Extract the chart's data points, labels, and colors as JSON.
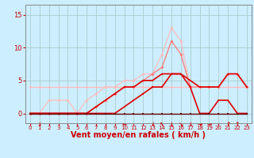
{
  "background_color": "#cceeff",
  "grid_color": "#aacccc",
  "xlabel": "Vent moyen/en rafales ( km/h )",
  "xlabel_color": "#cc0000",
  "xlabel_fontsize": 7,
  "ytick_labels": [
    "0",
    "5",
    "10",
    "15"
  ],
  "ytick_vals": [
    0,
    5,
    10,
    15
  ],
  "xtick_vals": [
    0,
    1,
    2,
    3,
    4,
    5,
    6,
    7,
    8,
    9,
    10,
    11,
    12,
    13,
    14,
    15,
    16,
    17,
    18,
    19,
    20,
    21,
    22,
    23
  ],
  "ylim": [
    -1.5,
    16.5
  ],
  "xlim": [
    -0.5,
    23.5
  ],
  "series": [
    {
      "x": [
        0,
        1,
        2,
        3,
        4,
        5,
        6,
        7,
        8,
        9,
        10,
        11,
        12,
        13,
        14,
        15,
        16,
        17,
        18,
        19,
        20,
        21,
        22,
        23
      ],
      "y": [
        4,
        4,
        4,
        4,
        4,
        4,
        4,
        4,
        4,
        4,
        4,
        4,
        4,
        4,
        4,
        4,
        4,
        4,
        4,
        4,
        4,
        4,
        4,
        4
      ],
      "color": "#ffbbbb",
      "linewidth": 0.9,
      "marker": "D",
      "markersize": 2.0
    },
    {
      "x": [
        0,
        1,
        2,
        3,
        4,
        5,
        6,
        7,
        8,
        9,
        10,
        11,
        12,
        13,
        14,
        15,
        16,
        17,
        18,
        19,
        20,
        21,
        22,
        23
      ],
      "y": [
        0,
        0,
        2,
        2,
        2,
        0,
        2,
        3,
        4,
        4,
        5,
        5,
        6,
        6,
        9,
        13,
        11,
        4,
        4,
        4,
        4,
        6,
        6,
        4
      ],
      "color": "#ffbbbb",
      "linewidth": 0.9,
      "marker": "D",
      "markersize": 2.0
    },
    {
      "x": [
        0,
        1,
        2,
        3,
        4,
        5,
        6,
        7,
        8,
        9,
        10,
        11,
        12,
        13,
        14,
        15,
        16,
        17,
        18,
        19,
        20,
        21,
        22,
        23
      ],
      "y": [
        0,
        0,
        0,
        0,
        0,
        0,
        0,
        1,
        2,
        3,
        4,
        4,
        5,
        6,
        7,
        11,
        9,
        4,
        4,
        4,
        4,
        6,
        6,
        4
      ],
      "color": "#ff7777",
      "linewidth": 0.9,
      "marker": "D",
      "markersize": 2.0
    },
    {
      "x": [
        0,
        1,
        2,
        3,
        4,
        5,
        6,
        7,
        8,
        9,
        10,
        11,
        12,
        13,
        14,
        15,
        16,
        17,
        18,
        19,
        20,
        21,
        22,
        23
      ],
      "y": [
        0,
        0,
        0,
        0,
        0,
        0,
        0,
        1,
        2,
        3,
        4,
        4,
        5,
        5,
        6,
        6,
        6,
        5,
        4,
        4,
        4,
        6,
        6,
        4
      ],
      "color": "#dd0000",
      "linewidth": 1.2,
      "marker": "s",
      "markersize": 2.0
    },
    {
      "x": [
        0,
        1,
        2,
        3,
        4,
        5,
        6,
        7,
        8,
        9,
        10,
        11,
        12,
        13,
        14,
        15,
        16,
        17,
        18,
        19,
        20,
        21,
        22,
        23
      ],
      "y": [
        0,
        0,
        0,
        0,
        0,
        0,
        0,
        0,
        0,
        0,
        1,
        2,
        3,
        4,
        4,
        6,
        6,
        4,
        0,
        0,
        2,
        2,
        0,
        0
      ],
      "color": "#dd0000",
      "linewidth": 1.2,
      "marker": "s",
      "markersize": 2.0
    },
    {
      "x": [
        0,
        1,
        2,
        3,
        4,
        5,
        6,
        7,
        8,
        9,
        10,
        11,
        12,
        13,
        14,
        15,
        16,
        17,
        18,
        19,
        20,
        21,
        22,
        23
      ],
      "y": [
        0,
        0,
        0,
        0,
        0,
        0,
        0,
        0,
        0,
        0,
        0,
        0,
        0,
        0,
        0,
        0,
        0,
        0,
        0,
        0,
        0,
        0,
        0,
        0
      ],
      "color": "#660000",
      "linewidth": 1.0,
      "marker": "s",
      "markersize": 2.0
    }
  ],
  "wind_arrows": [
    {
      "x": 1,
      "char": "↓"
    },
    {
      "x": 10,
      "char": "←"
    },
    {
      "x": 13,
      "char": "↓"
    },
    {
      "x": 14,
      "char": "↖"
    },
    {
      "x": 15,
      "char": "↓"
    },
    {
      "x": 16,
      "char": "↘"
    },
    {
      "x": 17,
      "char": "↓"
    },
    {
      "x": 18,
      "char": "→"
    },
    {
      "x": 19,
      "char": "→"
    },
    {
      "x": 21,
      "char": "↑"
    },
    {
      "x": 22,
      "char": "↑"
    }
  ]
}
